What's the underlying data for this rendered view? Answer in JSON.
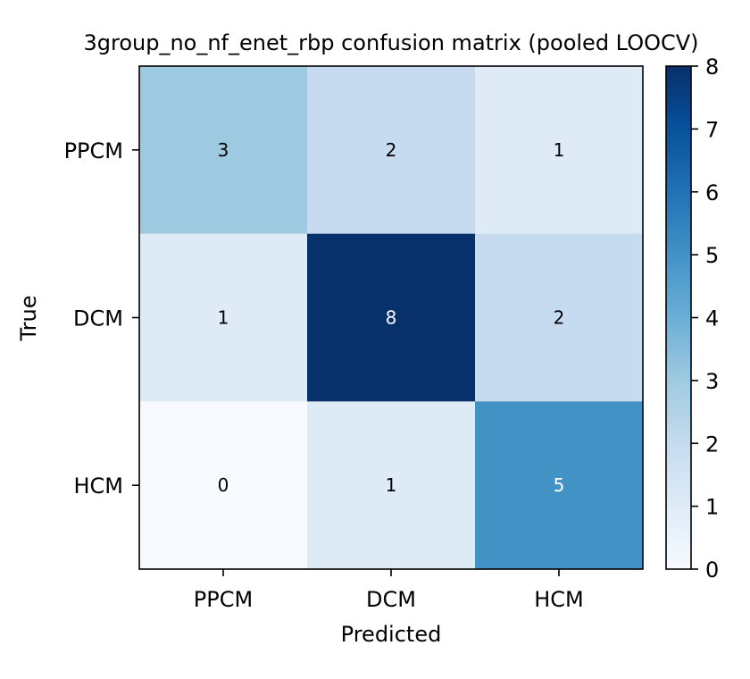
{
  "chart_data": {
    "type": "heatmap",
    "title": "3group_no_nf_enet_rbp confusion matrix (pooled LOOCV)",
    "xlabel": "Predicted",
    "ylabel": "True",
    "x_categories": [
      "PPCM",
      "DCM",
      "HCM"
    ],
    "y_categories": [
      "PPCM",
      "DCM",
      "HCM"
    ],
    "values": [
      [
        3,
        2,
        1
      ],
      [
        1,
        8,
        2
      ],
      [
        0,
        1,
        5
      ]
    ],
    "colormap": "Blues",
    "colorbar": {
      "min": 0,
      "max": 8,
      "ticks": [
        "0",
        "1",
        "2",
        "3",
        "4",
        "5",
        "6",
        "7",
        "8"
      ]
    },
    "grid": false
  }
}
